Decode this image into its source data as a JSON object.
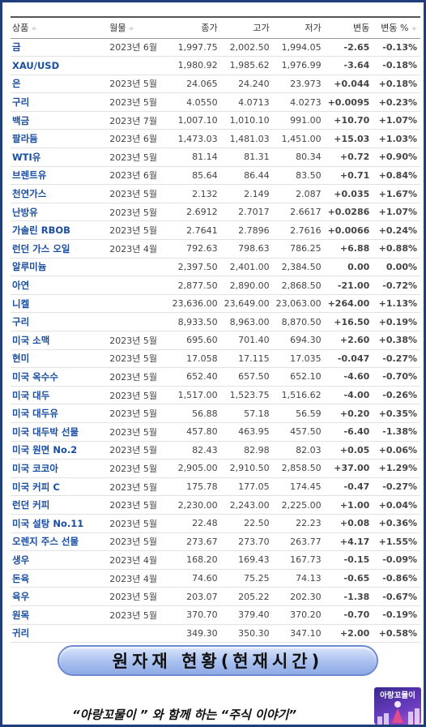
{
  "table": {
    "headers": {
      "name": "상품",
      "month": "월물",
      "close": "종가",
      "high": "고가",
      "low": "저가",
      "change": "변동",
      "change_pct": "변동 %",
      "sort_icon": "÷"
    },
    "rows": [
      {
        "name": "금",
        "month": "2023년 6월",
        "close": "1,997.75",
        "high": "2,002.50",
        "low": "1,994.05",
        "change": "-2.65",
        "pct": "-0.13%",
        "dir": "neg"
      },
      {
        "name": "XAU/USD",
        "month": "",
        "close": "1,980.92",
        "high": "1,985.62",
        "low": "1,976.99",
        "change": "-3.64",
        "pct": "-0.18%",
        "dir": "neg"
      },
      {
        "name": "은",
        "month": "2023년 5월",
        "close": "24.065",
        "high": "24.240",
        "low": "23.973",
        "change": "+0.044",
        "pct": "+0.18%",
        "dir": "pos"
      },
      {
        "name": "구리",
        "month": "2023년 5월",
        "close": "4.0550",
        "high": "4.0713",
        "low": "4.0273",
        "change": "+0.0095",
        "pct": "+0.23%",
        "dir": "pos"
      },
      {
        "name": "백금",
        "month": "2023년 7월",
        "close": "1,007.10",
        "high": "1,010.10",
        "low": "991.00",
        "change": "+10.70",
        "pct": "+1.07%",
        "dir": "pos"
      },
      {
        "name": "팔라듐",
        "month": "2023년 6월",
        "close": "1,473.03",
        "high": "1,481.03",
        "low": "1,451.00",
        "change": "+15.03",
        "pct": "+1.03%",
        "dir": "pos"
      },
      {
        "name": "WTI유",
        "month": "2023년 5월",
        "close": "81.14",
        "high": "81.31",
        "low": "80.34",
        "change": "+0.72",
        "pct": "+0.90%",
        "dir": "pos"
      },
      {
        "name": "브렌트유",
        "month": "2023년 6월",
        "close": "85.64",
        "high": "86.44",
        "low": "83.50",
        "change": "+0.71",
        "pct": "+0.84%",
        "dir": "pos"
      },
      {
        "name": "천연가스",
        "month": "2023년 5월",
        "close": "2.132",
        "high": "2.149",
        "low": "2.087",
        "change": "+0.035",
        "pct": "+1.67%",
        "dir": "pos"
      },
      {
        "name": "난방유",
        "month": "2023년 5월",
        "close": "2.6912",
        "high": "2.7017",
        "low": "2.6617",
        "change": "+0.0286",
        "pct": "+1.07%",
        "dir": "pos"
      },
      {
        "name": "가솔린 RBOB",
        "month": "2023년 5월",
        "close": "2.7641",
        "high": "2.7896",
        "low": "2.7616",
        "change": "+0.0066",
        "pct": "+0.24%",
        "dir": "pos"
      },
      {
        "name": "런던 가스 오일",
        "month": "2023년 4월",
        "close": "792.63",
        "high": "798.63",
        "low": "786.25",
        "change": "+6.88",
        "pct": "+0.88%",
        "dir": "pos"
      },
      {
        "name": "알루미늄",
        "month": "",
        "close": "2,397.50",
        "high": "2,401.00",
        "low": "2,384.50",
        "change": "0.00",
        "pct": "0.00%",
        "dir": "zero"
      },
      {
        "name": "아연",
        "month": "",
        "close": "2,877.50",
        "high": "2,890.00",
        "low": "2,868.50",
        "change": "-21.00",
        "pct": "-0.72%",
        "dir": "neg"
      },
      {
        "name": "니켈",
        "month": "",
        "close": "23,636.00",
        "high": "23,649.00",
        "low": "23,063.00",
        "change": "+264.00",
        "pct": "+1.13%",
        "dir": "pos"
      },
      {
        "name": "구리",
        "month": "",
        "close": "8,933.50",
        "high": "8,963.00",
        "low": "8,870.50",
        "change": "+16.50",
        "pct": "+0.19%",
        "dir": "pos"
      },
      {
        "name": "미국 소맥",
        "month": "2023년 5월",
        "close": "695.60",
        "high": "701.40",
        "low": "694.30",
        "change": "+2.60",
        "pct": "+0.38%",
        "dir": "pos"
      },
      {
        "name": "현미",
        "month": "2023년 5월",
        "close": "17.058",
        "high": "17.115",
        "low": "17.035",
        "change": "-0.047",
        "pct": "-0.27%",
        "dir": "neg"
      },
      {
        "name": "미국 옥수수",
        "month": "2023년 5월",
        "close": "652.40",
        "high": "657.50",
        "low": "652.10",
        "change": "-4.60",
        "pct": "-0.70%",
        "dir": "neg"
      },
      {
        "name": "미국 대두",
        "month": "2023년 5월",
        "close": "1,517.00",
        "high": "1,523.75",
        "low": "1,516.62",
        "change": "-4.00",
        "pct": "-0.26%",
        "dir": "neg"
      },
      {
        "name": "미국 대두유",
        "month": "2023년 5월",
        "close": "56.88",
        "high": "57.18",
        "low": "56.59",
        "change": "+0.20",
        "pct": "+0.35%",
        "dir": "pos"
      },
      {
        "name": "미국 대두박 선물",
        "month": "2023년 5월",
        "close": "457.80",
        "high": "463.95",
        "low": "457.50",
        "change": "-6.40",
        "pct": "-1.38%",
        "dir": "neg"
      },
      {
        "name": "미국 원면 No.2",
        "month": "2023년 5월",
        "close": "82.43",
        "high": "82.98",
        "low": "82.03",
        "change": "+0.05",
        "pct": "+0.06%",
        "dir": "pos"
      },
      {
        "name": "미국 코코아",
        "month": "2023년 5월",
        "close": "2,905.00",
        "high": "2,910.50",
        "low": "2,858.50",
        "change": "+37.00",
        "pct": "+1.29%",
        "dir": "pos"
      },
      {
        "name": "미국 커피 C",
        "month": "2023년 5월",
        "close": "175.78",
        "high": "177.05",
        "low": "174.45",
        "change": "-0.47",
        "pct": "-0.27%",
        "dir": "neg"
      },
      {
        "name": "런던 커피",
        "month": "2023년 5월",
        "close": "2,230.00",
        "high": "2,243.00",
        "low": "2,225.00",
        "change": "+1.00",
        "pct": "+0.04%",
        "dir": "pos"
      },
      {
        "name": "미국 설탕 No.11",
        "month": "2023년 5월",
        "close": "22.48",
        "high": "22.50",
        "low": "22.23",
        "change": "+0.08",
        "pct": "+0.36%",
        "dir": "pos"
      },
      {
        "name": "오렌지 주스 선물",
        "month": "2023년 5월",
        "close": "273.67",
        "high": "273.70",
        "low": "263.77",
        "change": "+4.17",
        "pct": "+1.55%",
        "dir": "pos"
      },
      {
        "name": "생우",
        "month": "2023년 4월",
        "close": "168.20",
        "high": "169.43",
        "low": "167.73",
        "change": "-0.15",
        "pct": "-0.09%",
        "dir": "neg"
      },
      {
        "name": "돈육",
        "month": "2023년 4월",
        "close": "74.60",
        "high": "75.25",
        "low": "74.13",
        "change": "-0.65",
        "pct": "-0.86%",
        "dir": "neg"
      },
      {
        "name": "육우",
        "month": "2023년 5월",
        "close": "203.07",
        "high": "205.22",
        "low": "202.30",
        "change": "-1.38",
        "pct": "-0.67%",
        "dir": "neg"
      },
      {
        "name": "원목",
        "month": "2023년 5월",
        "close": "370.70",
        "high": "379.40",
        "low": "370.20",
        "change": "-0.70",
        "pct": "-0.19%",
        "dir": "neg"
      },
      {
        "name": "귀리",
        "month": "",
        "close": "349.30",
        "high": "350.30",
        "low": "347.10",
        "change": "+2.00",
        "pct": "+0.58%",
        "dir": "pos"
      }
    ]
  },
  "banner": {
    "title": "원자재 현황(현재시간)"
  },
  "footer": {
    "text": "“아랑꼬물이 ” 와 함께 하는 “주식 이야기”"
  },
  "logo": {
    "text": "아랑꼬물이"
  },
  "colors": {
    "positive": "#e5001c",
    "negative": "#2a76d2",
    "name": "#1a4ea0",
    "frame": "#1f3e7a"
  }
}
